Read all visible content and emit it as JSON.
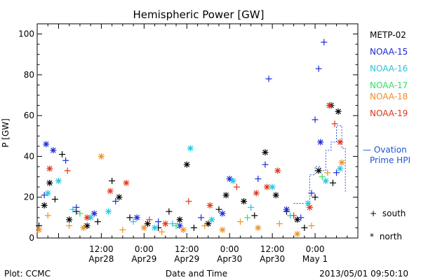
{
  "chart_data": {
    "type": "scatter",
    "title": "Hemispheric Power [GW]",
    "xlabel": "Date and Time",
    "ylabel": "P [GW]",
    "ylim": [
      0,
      105
    ],
    "xlim": [
      "2013-04-27T18:00",
      "2013-05-01T12:00"
    ],
    "grid": false,
    "legend_position": "right",
    "y_ticks": [
      0,
      20,
      40,
      60,
      80,
      100
    ],
    "x_ticks": [
      {
        "t": "2013-04-28T12:00",
        "line1": "12:00",
        "line2": "Apr28"
      },
      {
        "t": "2013-04-29T00:00",
        "line1": "0:00",
        "line2": "Apr29"
      },
      {
        "t": "2013-04-29T12:00",
        "line1": "12:00",
        "line2": "Apr29"
      },
      {
        "t": "2013-04-30T00:00",
        "line1": "0:00",
        "line2": "Apr30"
      },
      {
        "t": "2013-04-30T12:00",
        "line1": "12:00",
        "line2": "Apr30"
      },
      {
        "t": "2013-05-01T00:00",
        "line1": "0:00",
        "line2": "May 1"
      }
    ],
    "series": [
      {
        "name": "METP-02",
        "color": "#000000",
        "points": [
          {
            "x": "2013-04-27T18:30",
            "y": 6,
            "m": "plus"
          },
          {
            "x": "2013-04-27T20:00",
            "y": 16,
            "m": "star"
          },
          {
            "x": "2013-04-27T21:30",
            "y": 27,
            "m": "star"
          },
          {
            "x": "2013-04-27T23:00",
            "y": 19,
            "m": "plus"
          },
          {
            "x": "2013-04-28T01:00",
            "y": 41,
            "m": "plus"
          },
          {
            "x": "2013-04-28T03:00",
            "y": 9,
            "m": "star"
          },
          {
            "x": "2013-04-28T05:00",
            "y": 13,
            "m": "plus"
          },
          {
            "x": "2013-04-28T08:00",
            "y": 6,
            "m": "star"
          },
          {
            "x": "2013-04-28T11:00",
            "y": 8,
            "m": "plus"
          },
          {
            "x": "2013-04-28T15:00",
            "y": 28,
            "m": "plus"
          },
          {
            "x": "2013-04-28T17:00",
            "y": 20,
            "m": "star"
          },
          {
            "x": "2013-04-28T20:00",
            "y": 10,
            "m": "plus"
          },
          {
            "x": "2013-04-29T01:00",
            "y": 7,
            "m": "star"
          },
          {
            "x": "2013-04-29T04:00",
            "y": 5,
            "m": "plus"
          },
          {
            "x": "2013-04-29T07:00",
            "y": 13,
            "m": "plus"
          },
          {
            "x": "2013-04-29T10:00",
            "y": 9,
            "m": "star"
          },
          {
            "x": "2013-04-29T12:00",
            "y": 36,
            "m": "star"
          },
          {
            "x": "2013-04-29T14:00",
            "y": 5,
            "m": "plus"
          },
          {
            "x": "2013-04-29T18:00",
            "y": 7,
            "m": "star"
          },
          {
            "x": "2013-04-29T21:00",
            "y": 14,
            "m": "plus"
          },
          {
            "x": "2013-04-29T23:00",
            "y": 21,
            "m": "star"
          },
          {
            "x": "2013-04-30T04:00",
            "y": 18,
            "m": "star"
          },
          {
            "x": "2013-04-30T07:00",
            "y": 11,
            "m": "plus"
          },
          {
            "x": "2013-04-30T10:00",
            "y": 42,
            "m": "star"
          },
          {
            "x": "2013-04-30T13:00",
            "y": 21,
            "m": "star"
          },
          {
            "x": "2013-04-30T16:00",
            "y": 13,
            "m": "plus"
          },
          {
            "x": "2013-04-30T19:00",
            "y": 9,
            "m": "star"
          },
          {
            "x": "2013-04-30T21:00",
            "y": 5,
            "m": "plus"
          },
          {
            "x": "2013-05-01T00:00",
            "y": 20,
            "m": "plus"
          },
          {
            "x": "2013-05-01T01:00",
            "y": 33,
            "m": "star"
          },
          {
            "x": "2013-05-01T04:30",
            "y": 65,
            "m": "star"
          },
          {
            "x": "2013-05-01T06:30",
            "y": 62,
            "m": "star"
          },
          {
            "x": "2013-05-01T05:00",
            "y": 27,
            "m": "plus"
          }
        ]
      },
      {
        "name": "NOAA-15",
        "color": "#1a2ad6",
        "points": [
          {
            "x": "2013-04-27T20:00",
            "y": 21,
            "m": "plus"
          },
          {
            "x": "2013-04-27T20:30",
            "y": 46,
            "m": "star"
          },
          {
            "x": "2013-04-27T22:30",
            "y": 43,
            "m": "star"
          },
          {
            "x": "2013-04-28T02:00",
            "y": 38,
            "m": "plus"
          },
          {
            "x": "2013-04-28T05:00",
            "y": 15,
            "m": "plus"
          },
          {
            "x": "2013-04-28T10:00",
            "y": 12,
            "m": "star"
          },
          {
            "x": "2013-04-28T16:00",
            "y": 18,
            "m": "plus"
          },
          {
            "x": "2013-04-28T22:00",
            "y": 10,
            "m": "star"
          },
          {
            "x": "2013-04-29T04:00",
            "y": 8,
            "m": "plus"
          },
          {
            "x": "2013-04-29T10:00",
            "y": 6,
            "m": "star"
          },
          {
            "x": "2013-04-29T16:00",
            "y": 10,
            "m": "plus"
          },
          {
            "x": "2013-04-29T22:00",
            "y": 12,
            "m": "star"
          },
          {
            "x": "2013-04-30T00:00",
            "y": 29,
            "m": "star"
          },
          {
            "x": "2013-04-30T08:00",
            "y": 29,
            "m": "plus"
          },
          {
            "x": "2013-04-30T10:00",
            "y": 36,
            "m": "plus"
          },
          {
            "x": "2013-04-30T11:00",
            "y": 78,
            "m": "plus"
          },
          {
            "x": "2013-04-30T16:00",
            "y": 14,
            "m": "star"
          },
          {
            "x": "2013-04-30T20:00",
            "y": 10,
            "m": "plus"
          },
          {
            "x": "2013-05-01T00:00",
            "y": 58,
            "m": "plus"
          },
          {
            "x": "2013-05-01T01:00",
            "y": 83,
            "m": "plus"
          },
          {
            "x": "2013-05-01T02:30",
            "y": 96,
            "m": "plus"
          },
          {
            "x": "2013-05-01T01:30",
            "y": 47,
            "m": "star"
          },
          {
            "x": "2013-05-01T06:00",
            "y": 32,
            "m": "plus"
          },
          {
            "x": "2013-04-30T23:00",
            "y": 22,
            "m": "plus"
          }
        ]
      },
      {
        "name": "NOAA-16",
        "color": "#22c6e0",
        "points": [
          {
            "x": "2013-04-27T21:00",
            "y": 22,
            "m": "star"
          },
          {
            "x": "2013-04-28T00:00",
            "y": 28,
            "m": "star"
          },
          {
            "x": "2013-04-28T04:00",
            "y": 14,
            "m": "plus"
          },
          {
            "x": "2013-04-28T09:00",
            "y": 10,
            "m": "star"
          },
          {
            "x": "2013-04-28T14:00",
            "y": 13,
            "m": "star"
          },
          {
            "x": "2013-04-28T21:00",
            "y": 8,
            "m": "plus"
          },
          {
            "x": "2013-04-29T03:00",
            "y": 5,
            "m": "star"
          },
          {
            "x": "2013-04-29T08:00",
            "y": 7,
            "m": "plus"
          },
          {
            "x": "2013-04-29T13:00",
            "y": 44,
            "m": "star"
          },
          {
            "x": "2013-04-29T19:00",
            "y": 9,
            "m": "star"
          },
          {
            "x": "2013-04-30T01:00",
            "y": 28,
            "m": "star"
          },
          {
            "x": "2013-04-30T06:00",
            "y": 15,
            "m": "plus"
          },
          {
            "x": "2013-04-30T12:00",
            "y": 25,
            "m": "star"
          },
          {
            "x": "2013-04-30T17:00",
            "y": 11,
            "m": "plus"
          },
          {
            "x": "2013-04-30T22:00",
            "y": 17,
            "m": "star"
          },
          {
            "x": "2013-05-01T03:00",
            "y": 28,
            "m": "star"
          },
          {
            "x": "2013-05-01T07:00",
            "y": 34,
            "m": "star"
          }
        ]
      },
      {
        "name": "NOAA-17",
        "color": "#33dd66",
        "points": [
          {
            "x": "2013-04-28T06:00",
            "y": 12,
            "m": "plus"
          },
          {
            "x": "2013-04-29T09:00",
            "y": 6,
            "m": "plus"
          },
          {
            "x": "2013-04-30T05:00",
            "y": 10,
            "m": "plus"
          },
          {
            "x": "2013-05-01T02:00",
            "y": 30,
            "m": "plus"
          }
        ]
      },
      {
        "name": "NOAA-18",
        "color": "#f09020",
        "points": [
          {
            "x": "2013-04-27T18:30",
            "y": 4,
            "m": "star"
          },
          {
            "x": "2013-04-27T21:00",
            "y": 11,
            "m": "plus"
          },
          {
            "x": "2013-04-28T03:00",
            "y": 6,
            "m": "plus"
          },
          {
            "x": "2013-04-28T07:00",
            "y": 5,
            "m": "star"
          },
          {
            "x": "2013-04-28T12:00",
            "y": 40,
            "m": "star"
          },
          {
            "x": "2013-04-28T18:00",
            "y": 4,
            "m": "plus"
          },
          {
            "x": "2013-04-29T00:00",
            "y": 5,
            "m": "star"
          },
          {
            "x": "2013-04-29T05:00",
            "y": 3,
            "m": "plus"
          },
          {
            "x": "2013-04-29T11:00",
            "y": 4,
            "m": "star"
          },
          {
            "x": "2013-04-29T17:00",
            "y": 6,
            "m": "plus"
          },
          {
            "x": "2013-04-29T22:00",
            "y": 4,
            "m": "star"
          },
          {
            "x": "2013-04-30T03:00",
            "y": 8,
            "m": "plus"
          },
          {
            "x": "2013-04-30T08:00",
            "y": 5,
            "m": "star"
          },
          {
            "x": "2013-04-30T14:00",
            "y": 7,
            "m": "plus"
          },
          {
            "x": "2013-04-30T19:00",
            "y": 2,
            "m": "star"
          },
          {
            "x": "2013-04-30T23:00",
            "y": 6,
            "m": "plus"
          },
          {
            "x": "2013-05-01T03:30",
            "y": 32,
            "m": "plus"
          },
          {
            "x": "2013-05-01T07:30",
            "y": 37,
            "m": "star"
          }
        ]
      },
      {
        "name": "NOAA-19",
        "color": "#e03418",
        "points": [
          {
            "x": "2013-04-27T21:30",
            "y": 34,
            "m": "star"
          },
          {
            "x": "2013-04-28T02:30",
            "y": 33,
            "m": "plus"
          },
          {
            "x": "2013-04-28T08:00",
            "y": 10,
            "m": "star"
          },
          {
            "x": "2013-04-28T14:30",
            "y": 23,
            "m": "star"
          },
          {
            "x": "2013-04-28T19:00",
            "y": 27,
            "m": "star"
          },
          {
            "x": "2013-04-29T01:30",
            "y": 9,
            "m": "plus"
          },
          {
            "x": "2013-04-29T06:00",
            "y": 7,
            "m": "star"
          },
          {
            "x": "2013-04-29T12:30",
            "y": 18,
            "m": "plus"
          },
          {
            "x": "2013-04-29T18:30",
            "y": 16,
            "m": "star"
          },
          {
            "x": "2013-04-30T02:00",
            "y": 25,
            "m": "plus"
          },
          {
            "x": "2013-04-30T07:30",
            "y": 22,
            "m": "star"
          },
          {
            "x": "2013-04-30T10:30",
            "y": 25,
            "m": "star"
          },
          {
            "x": "2013-04-30T13:30",
            "y": 33,
            "m": "star"
          },
          {
            "x": "2013-04-30T18:00",
            "y": 11,
            "m": "plus"
          },
          {
            "x": "2013-04-30T22:30",
            "y": 15,
            "m": "star"
          },
          {
            "x": "2013-05-01T04:00",
            "y": 65,
            "m": "star"
          },
          {
            "x": "2013-05-01T05:30",
            "y": 56,
            "m": "plus"
          },
          {
            "x": "2013-05-01T07:00",
            "y": 47,
            "m": "star"
          }
        ]
      }
    ],
    "ovation": {
      "name": "Ovation Prime HPI",
      "color": "#1f55d6",
      "dashed": true,
      "points": [
        {
          "x": "2013-04-30T18:00",
          "y": 17
        },
        {
          "x": "2013-04-30T22:30",
          "y": 17
        },
        {
          "x": "2013-04-30T22:30",
          "y": 31
        },
        {
          "x": "2013-05-01T00:00",
          "y": 31
        },
        {
          "x": "2013-05-01T00:00",
          "y": 35
        },
        {
          "x": "2013-05-01T01:30",
          "y": 35
        },
        {
          "x": "2013-05-01T01:30",
          "y": 33
        },
        {
          "x": "2013-05-01T03:00",
          "y": 33
        },
        {
          "x": "2013-05-01T03:00",
          "y": 43
        },
        {
          "x": "2013-05-01T04:30",
          "y": 43
        },
        {
          "x": "2013-05-01T04:30",
          "y": 47
        },
        {
          "x": "2013-05-01T06:00",
          "y": 47
        },
        {
          "x": "2013-05-01T06:00",
          "y": 55
        },
        {
          "x": "2013-05-01T07:30",
          "y": 55
        },
        {
          "x": "2013-05-01T07:30",
          "y": 44
        },
        {
          "x": "2013-05-01T08:30",
          "y": 44
        },
        {
          "x": "2013-05-01T08:30",
          "y": 23
        },
        {
          "x": "2013-05-01T09:00",
          "y": 23
        }
      ]
    }
  },
  "legend": {
    "items": [
      "METP-02",
      "NOAA-15",
      "NOAA-16",
      "NOAA-17",
      "NOAA-18",
      "NOAA-19"
    ],
    "ovation_line1": "— Ovation",
    "ovation_line2": "Prime HPI",
    "south_symbol": "+",
    "south_label": "south",
    "north_symbol": "*",
    "north_label": "north"
  },
  "footer": {
    "left": "Plot: CCMC",
    "center": "Date and Time",
    "right": "2013/05/01 09:50:10"
  }
}
